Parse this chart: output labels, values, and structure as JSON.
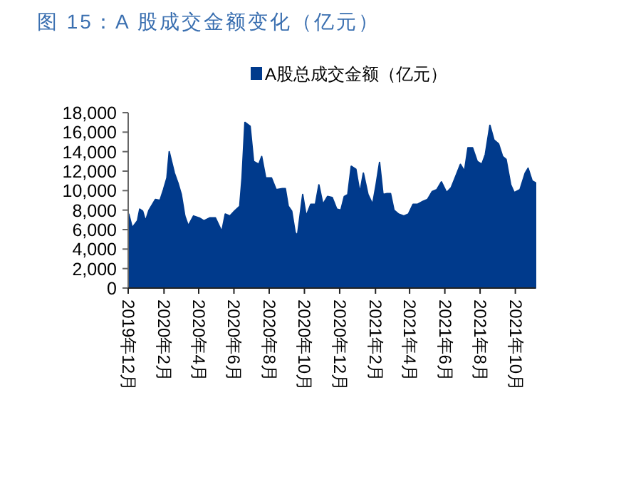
{
  "chart_data": {
    "type": "area",
    "title": "图 15：A 股成交金额变化（亿元）",
    "series": [
      {
        "name": "A股总成交金额（亿元）",
        "color": "#003a8c",
        "x": [
          "2019-12-02",
          "2019-12-08",
          "2019-12-17",
          "2019-12-21",
          "2019-12-26",
          "2019-12-31",
          "2020-01-06",
          "2020-01-17",
          "2020-01-25",
          "2020-01-31",
          "2020-02-06",
          "2020-02-10",
          "2020-02-14",
          "2020-02-19",
          "2020-02-25",
          "2020-03-02",
          "2020-03-08",
          "2020-03-14",
          "2020-03-23",
          "2020-04-02",
          "2020-04-10",
          "2020-04-20",
          "2020-04-30",
          "2020-05-11",
          "2020-05-17",
          "2020-05-25",
          "2020-06-02",
          "2020-06-11",
          "2020-06-15",
          "2020-06-20",
          "2020-06-29",
          "2020-07-05",
          "2020-07-14",
          "2020-07-19",
          "2020-07-26",
          "2020-08-05",
          "2020-08-13",
          "2020-08-24",
          "2020-08-29",
          "2020-09-03",
          "2020-09-09",
          "2020-09-15",
          "2020-09-19",
          "2020-09-28",
          "2020-10-04",
          "2020-10-12",
          "2020-10-20",
          "2020-10-26",
          "2020-11-02",
          "2020-11-10",
          "2020-11-18",
          "2020-11-26",
          "2020-12-03",
          "2020-12-09",
          "2020-12-15",
          "2020-12-21",
          "2020-12-29",
          "2021-01-05",
          "2021-01-11",
          "2021-01-19",
          "2021-01-27",
          "2021-02-02",
          "2021-02-08",
          "2021-02-14",
          "2021-02-21",
          "2021-02-27",
          "2021-03-05",
          "2021-03-13",
          "2021-03-22",
          "2021-03-30",
          "2021-04-07",
          "2021-04-15",
          "2021-04-24",
          "2021-05-02",
          "2021-05-10",
          "2021-05-18",
          "2021-05-26",
          "2021-06-04",
          "2021-06-12",
          "2021-06-20",
          "2021-06-28",
          "2021-07-05",
          "2021-07-11",
          "2021-07-19",
          "2021-07-27",
          "2021-08-04",
          "2021-08-10",
          "2021-08-18",
          "2021-08-25",
          "2021-09-02",
          "2021-09-09",
          "2021-09-15",
          "2021-09-23",
          "2021-09-29",
          "2021-10-09",
          "2021-10-18",
          "2021-10-23",
          "2021-10-30",
          "2021-11-05"
        ],
        "values": [
          7600,
          6200,
          6900,
          8100,
          7900,
          6900,
          8000,
          9100,
          9000,
          10100,
          11300,
          14000,
          13000,
          11800,
          10800,
          9600,
          7400,
          6400,
          7400,
          7200,
          6900,
          7200,
          7200,
          5800,
          7600,
          7400,
          7900,
          8400,
          11300,
          17000,
          16600,
          13000,
          12700,
          13500,
          11300,
          11300,
          10100,
          10200,
          10200,
          8400,
          7900,
          5700,
          5400,
          9600,
          7400,
          8600,
          8600,
          10600,
          8600,
          9400,
          9300,
          8100,
          8000,
          9400,
          9600,
          12500,
          12200,
          9800,
          11800,
          9600,
          8600,
          10600,
          12900,
          9600,
          9700,
          9700,
          8000,
          7600,
          7400,
          7600,
          8600,
          8600,
          8900,
          9100,
          9900,
          10100,
          10900,
          9800,
          10300,
          11500,
          12700,
          12000,
          14400,
          14400,
          13000,
          12700,
          13700,
          16700,
          15200,
          14800,
          13500,
          13200,
          10600,
          9800,
          10100,
          11800,
          12300,
          11000,
          10800
        ]
      }
    ],
    "xlim": [
      "2019-12-01",
      "2021-11-05"
    ],
    "xticks": [
      {
        "value": "2019-12-01",
        "label": "2019年12月"
      },
      {
        "value": "2020-02-01",
        "label": "2020年2月"
      },
      {
        "value": "2020-04-01",
        "label": "2020年4月"
      },
      {
        "value": "2020-06-01",
        "label": "2020年6月"
      },
      {
        "value": "2020-08-01",
        "label": "2020年8月"
      },
      {
        "value": "2020-10-01",
        "label": "2020年10月"
      },
      {
        "value": "2020-12-01",
        "label": "2020年12月"
      },
      {
        "value": "2021-02-01",
        "label": "2021年2月"
      },
      {
        "value": "2021-04-01",
        "label": "2021年4月"
      },
      {
        "value": "2021-06-01",
        "label": "2021年6月"
      },
      {
        "value": "2021-08-01",
        "label": "2021年8月"
      },
      {
        "value": "2021-10-01",
        "label": "2021年10月"
      }
    ],
    "ylim": [
      0,
      18000
    ],
    "yticks": [
      0,
      {
        "value": 2000,
        "label": "2,000"
      },
      {
        "value": 4000,
        "label": "4,000"
      },
      {
        "value": 6000,
        "label": "6,000"
      },
      {
        "value": 8000,
        "label": "8,000"
      },
      {
        "value": 10000,
        "label": "10,000"
      },
      {
        "value": 12000,
        "label": "12,000"
      },
      {
        "value": 14000,
        "label": "14,000"
      },
      {
        "value": 16000,
        "label": "16,000"
      },
      {
        "value": 18000,
        "label": "18,000"
      }
    ],
    "legend": "top",
    "grid": false
  }
}
